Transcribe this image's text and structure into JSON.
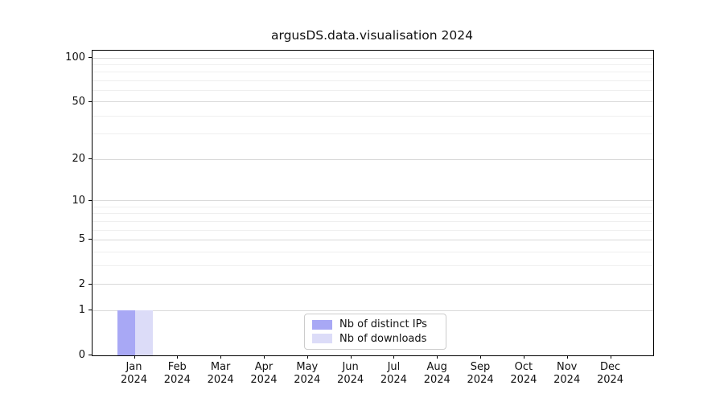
{
  "title": "argusDS.data.visualisation 2024",
  "colors": {
    "series_distinct_ips": "#a8a8f5",
    "series_downloads": "#dcdcf8",
    "grid_major": "#d9d9d9",
    "grid_minor": "#efefef",
    "spine": "#000000",
    "text": "#111111",
    "legend_border": "#cccccc"
  },
  "chart_data": {
    "type": "bar",
    "title": "argusDS.data.visualisation 2024",
    "xlabel": "",
    "ylabel": "",
    "categories": [
      "Jan",
      "Feb",
      "Mar",
      "Apr",
      "May",
      "Jun",
      "Jul",
      "Aug",
      "Sep",
      "Oct",
      "Nov",
      "Dec"
    ],
    "category_year": "2024",
    "series": [
      {
        "name": "Nb of distinct IPs",
        "color": "#a8a8f5",
        "values": [
          1,
          0,
          0,
          0,
          0,
          0,
          0,
          0,
          0,
          0,
          0,
          0
        ]
      },
      {
        "name": "Nb of downloads",
        "color": "#dcdcf8",
        "values": [
          1,
          0,
          0,
          0,
          0,
          0,
          0,
          0,
          0,
          0,
          0,
          0
        ]
      }
    ],
    "y_scale": "log1p",
    "y_major_ticks": [
      0,
      1,
      2,
      5,
      10,
      20,
      50,
      100
    ],
    "y_minor_ticks": [
      3,
      4,
      6,
      7,
      8,
      9,
      30,
      40,
      60,
      70,
      80,
      90
    ],
    "ylim": [
      0,
      112
    ],
    "grid": true,
    "legend": {
      "position": "lower center",
      "items": [
        "Nb of distinct IPs",
        "Nb of downloads"
      ]
    }
  }
}
